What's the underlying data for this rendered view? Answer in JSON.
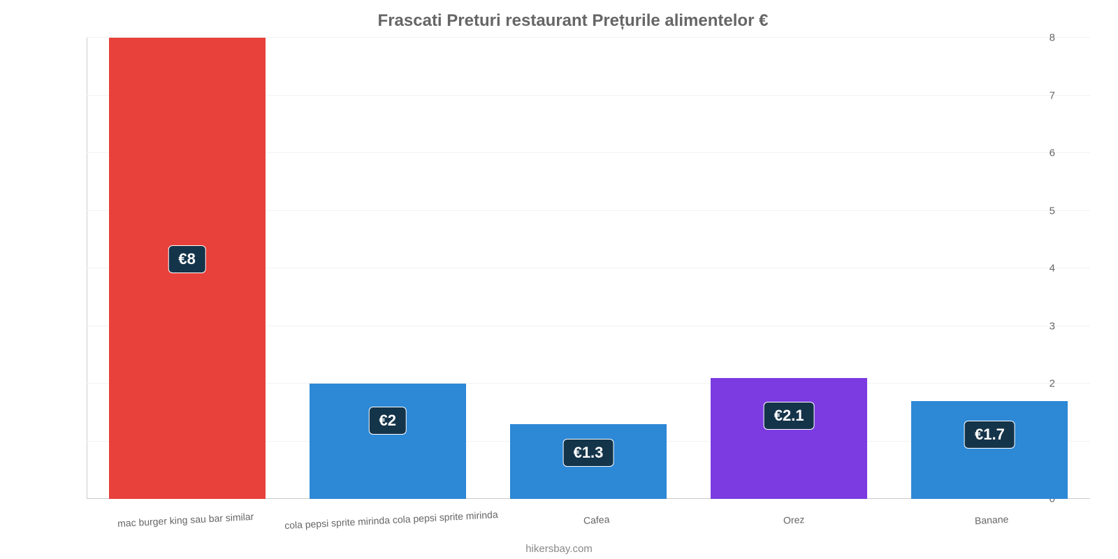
{
  "chart": {
    "type": "bar",
    "title": "Frascati Preturi restaurant Prețurile alimentelor €",
    "title_color": "#666666",
    "title_fontsize": 24,
    "background_color": "#ffffff",
    "grid_color": "#f2f2f2",
    "axis_line_color": "#cccccc",
    "tick_color": "#666666",
    "tick_fontsize": 15,
    "xlabel_fontsize": 14,
    "xlabel_color": "#666666",
    "xlabel_rotation_deg": -3,
    "bar_width_pct": 78,
    "ylim": [
      0,
      8
    ],
    "ytick_step": 1,
    "yticks": [
      "0",
      "1",
      "2",
      "3",
      "4",
      "5",
      "6",
      "7",
      "8"
    ],
    "value_prefix": "€",
    "value_label_bg": "#14344a",
    "value_label_color": "#ffffff",
    "value_label_border": "#ffffff",
    "value_label_fontsize": 22,
    "categories": [
      "mac burger king sau bar similar",
      "cola pepsi sprite mirinda cola pepsi sprite mirinda",
      "Cafea",
      "Orez",
      "Banane"
    ],
    "values": [
      8,
      2,
      1.3,
      2.1,
      1.7
    ],
    "value_display": [
      "€8",
      "€2",
      "€1.3",
      "€2.1",
      "€1.7"
    ],
    "bar_colors": [
      "#e8403a",
      "#2d88d6",
      "#2d88d6",
      "#7b3be0",
      "#2d88d6"
    ],
    "credit": "hikersbay.com",
    "credit_color": "#888888"
  }
}
